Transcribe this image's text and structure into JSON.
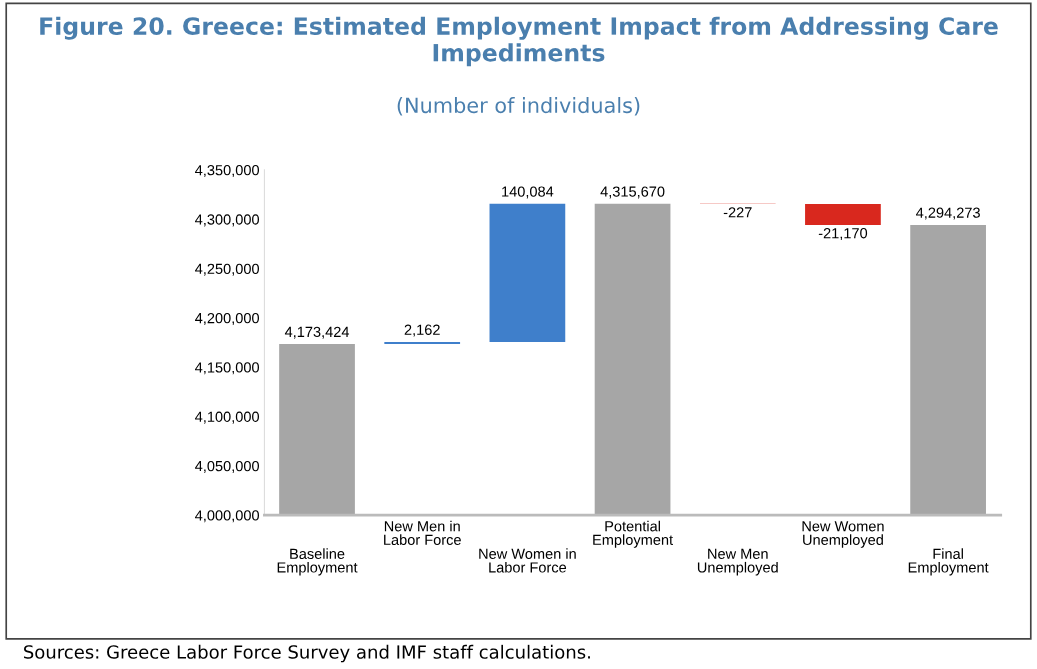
{
  "chart_data": {
    "type": "bar",
    "title": "Figure 20. Greece: Estimated Employment Impact from Addressing Care Impediments",
    "subtitle": "(Number of individuals)",
    "categories": [
      "Baseline\nEmployment",
      "New Men in\nLabor Force",
      "New Women in\nLabor Force",
      "Potential\nEmployment",
      "New Men\nUnemployed",
      "New Women\nUnemployed",
      "Final\nEmployment"
    ],
    "base": [
      4000000,
      4173424,
      4175586,
      4000000,
      4315670,
      4315443,
      4000000
    ],
    "values": [
      173424,
      2162,
      140084,
      315670,
      -227,
      -21170,
      294273
    ],
    "value_labels": [
      "4,173,424",
      "2,162",
      "140,084",
      "4,315,670",
      "-227",
      "-21,170",
      "4,294,273"
    ],
    "colors": [
      "#a6a6a6",
      "#3f7fcb",
      "#3f7fcb",
      "#a6a6a6",
      "#d9281e",
      "#d9281e",
      "#a6a6a6"
    ],
    "ylim": [
      4000000,
      4350000
    ],
    "yticks": [
      {
        "value": 4000000,
        "label": "4,000,000"
      },
      {
        "value": 4050000,
        "label": "4,050,000"
      },
      {
        "value": 4100000,
        "label": "4,100,000"
      },
      {
        "value": 4150000,
        "label": "4,150,000"
      },
      {
        "value": 4200000,
        "label": "4,200,000"
      },
      {
        "value": 4250000,
        "label": "4,250,000"
      },
      {
        "value": 4300000,
        "label": "4,300,000"
      },
      {
        "value": 4350000,
        "label": "4,350,000"
      }
    ],
    "grid": false,
    "legend": false,
    "annotations": [
      "Sources: Greece Labor Force Survey and IMF staff calculations."
    ]
  }
}
